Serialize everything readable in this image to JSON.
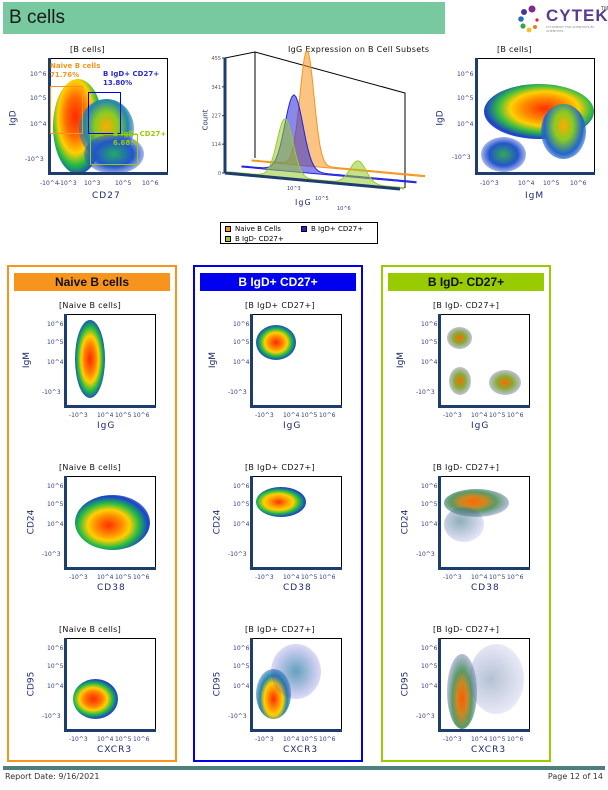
{
  "header": {
    "title": "B cells",
    "logo_text": "CYTEK",
    "logo_tm": "TM",
    "logo_subtitle": "CYTOMETRY FOR SCIENTISTS BY SCIENTISTS",
    "bar_color": "#78c99f"
  },
  "footer": {
    "report_date": "Report Date: 9/16/2021",
    "page": "Page 12 of 14"
  },
  "colors": {
    "naive": "#f7941d",
    "igd_pos": "#0000e6",
    "igd_neg": "#99cc00"
  },
  "chart_data": [
    {
      "id": "cd27-vs-igd",
      "type": "scatter",
      "subtype": "density-dot-plot",
      "title": "[B cells]",
      "xlabel": "CD27",
      "ylabel": "IgD",
      "xticks": [
        "-10^4",
        "-10^3",
        "10^3",
        "10^5",
        "10^6"
      ],
      "yticks": [
        "10^6",
        "10^5",
        "10^4",
        "-10^3"
      ],
      "gates": [
        {
          "name": "Naive B cells",
          "percent": "71.76%",
          "color": "#f7941d"
        },
        {
          "name": "B IgD+ CD27+",
          "percent": "13.80%",
          "color": "#0000e6"
        },
        {
          "name": "B IgD- CD27+",
          "percent": "6.68%",
          "color": "#99cc00"
        }
      ]
    },
    {
      "id": "igg-histogram-overlay",
      "type": "area",
      "subtype": "3d-histogram-overlay",
      "title": "IgG Expression on B Cell Subsets",
      "xlabel": "IgG",
      "ylabel": "Count",
      "yticks": [
        0,
        114,
        227,
        341,
        455
      ],
      "ylim": [
        0,
        455
      ],
      "xticks": [
        "10^3",
        "10^5",
        "10^6"
      ],
      "series": [
        {
          "name": "Naive B Cells",
          "color": "#f7941d",
          "peak_count": 455
        },
        {
          "name": "B IgD+ CD27+",
          "color": "#2222dd",
          "peak_count": 300
        },
        {
          "name": "B IgD- CD27+",
          "color": "#99cc33",
          "peak_count": 230,
          "secondary_peak_count": 90
        }
      ],
      "legend": "bottom"
    },
    {
      "id": "igm-vs-igd",
      "type": "scatter",
      "subtype": "density-dot-plot",
      "title": "[B cells]",
      "xlabel": "IgM",
      "ylabel": "IgD",
      "xticks": [
        "-10^3",
        "10^4",
        "10^5",
        "10^6"
      ],
      "yticks": [
        "10^6",
        "10^5",
        "10^4",
        "-10^3"
      ]
    }
  ],
  "panels": [
    {
      "header": "Naive B cells",
      "color": "#f7941d",
      "header_bg": "#f7941d",
      "header_fg": "#111111",
      "plots": [
        {
          "title": "[Naive B cells]",
          "xlabel": "IgG",
          "ylabel": "IgM",
          "xticks": [
            "-10^3",
            "10^4",
            "10^5",
            "10^6"
          ],
          "yticks": [
            "10^6",
            "10^5",
            "10^4",
            "-10^3"
          ]
        },
        {
          "title": "[Naive B cells]",
          "xlabel": "CD38",
          "ylabel": "CD24",
          "xticks": [
            "-10^3",
            "10^4",
            "10^5",
            "10^6"
          ],
          "yticks": [
            "10^6",
            "10^5",
            "10^4",
            "-10^3"
          ]
        },
        {
          "title": "[Naive B cells]",
          "xlabel": "CXCR3",
          "ylabel": "CD95",
          "xticks": [
            "-10^3",
            "10^4",
            "10^5",
            "10^6"
          ],
          "yticks": [
            "10^6",
            "10^5",
            "10^4",
            "-10^3"
          ]
        }
      ]
    },
    {
      "header": "B IgD+ CD27+",
      "color": "#0000e6",
      "header_bg": "#0000f0",
      "header_fg": "#ffffff",
      "plots": [
        {
          "title": "[B IgD+ CD27+]",
          "xlabel": "IgG",
          "ylabel": "IgM",
          "xticks": [
            "-10^3",
            "10^4",
            "10^5",
            "10^6"
          ],
          "yticks": [
            "10^6",
            "10^5",
            "10^4",
            "-10^3"
          ]
        },
        {
          "title": "[B IgD+ CD27+]",
          "xlabel": "CD38",
          "ylabel": "CD24",
          "xticks": [
            "-10^3",
            "10^4",
            "10^5",
            "10^6"
          ],
          "yticks": [
            "10^6",
            "10^5",
            "10^4",
            "-10^3"
          ]
        },
        {
          "title": "[B IgD+ CD27+]",
          "xlabel": "CXCR3",
          "ylabel": "CD95",
          "xticks": [
            "-10^3",
            "10^4",
            "10^5",
            "10^6"
          ],
          "yticks": [
            "10^6",
            "10^5",
            "10^4",
            "-10^3"
          ]
        }
      ]
    },
    {
      "header": "B IgD- CD27+",
      "color": "#99cc00",
      "header_bg": "#99cc00",
      "header_fg": "#111111",
      "plots": [
        {
          "title": "[B IgD- CD27+]",
          "xlabel": "IgG",
          "ylabel": "IgM",
          "xticks": [
            "-10^3",
            "10^4",
            "10^5",
            "10^6"
          ],
          "yticks": [
            "10^6",
            "10^5",
            "10^4",
            "-10^3"
          ]
        },
        {
          "title": "[B IgD- CD27+]",
          "xlabel": "CD38",
          "ylabel": "CD24",
          "xticks": [
            "-10^3",
            "10^4",
            "10^5",
            "10^6"
          ],
          "yticks": [
            "10^6",
            "10^5",
            "10^4",
            "-10^3"
          ]
        },
        {
          "title": "[B IgD- CD27+]",
          "xlabel": "CXCR3",
          "ylabel": "CD95",
          "xticks": [
            "-10^3",
            "10^4",
            "10^5",
            "10^6"
          ],
          "yticks": [
            "10^6",
            "10^5",
            "10^4",
            "-10^3"
          ]
        }
      ]
    }
  ]
}
